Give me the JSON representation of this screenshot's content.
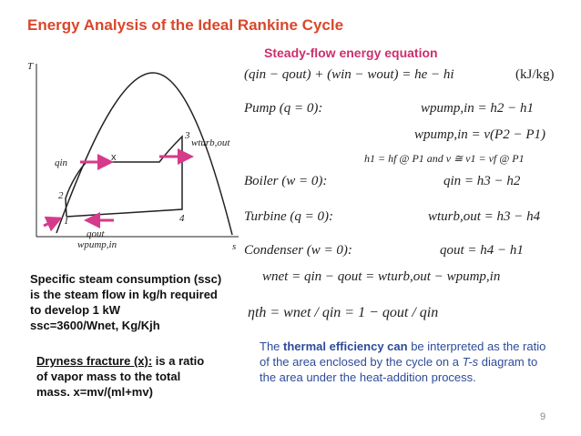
{
  "title": "Energy Analysis of the Ideal Rankine Cycle",
  "subtitle": "Steady-flow energy equation",
  "diagram": {
    "t_axis": "T",
    "s_axis": "s",
    "q_in": "qin",
    "q_out": "qout",
    "w_turb": "wturb,out",
    "w_pump": "wpump,in",
    "point_1": "1",
    "point_2": "2",
    "point_3": "3",
    "point_4": "4",
    "x_mark": "x"
  },
  "equations": {
    "energy": "(qin − qout) + (win − wout) = he − hi",
    "units": "(kJ/kg)",
    "pump_label": "Pump (q = 0):",
    "pump_eq1": "wpump,in = h2 − h1",
    "pump_eq2": "wpump,in = v(P2 − P1)",
    "pump_note": "h1 = hf @ P1     and     v ≅ v1 = vf @ P1",
    "boiler_label": "Boiler (w = 0):",
    "boiler_eq": "qin = h3 − h2",
    "turbine_label": "Turbine (q = 0):",
    "turbine_eq": "wturb,out = h3 − h4",
    "condenser_label": "Condenser (w = 0):",
    "condenser_eq": "qout = h4 − h1",
    "net_work": "wnet = qin − qout = wturb,out − wpump,in",
    "efficiency": "ηth = wnet / qin = 1 − qout / qin"
  },
  "ssc": [
    "Specific steam consumption (ssc)",
    "is the steam flow in kg/h required",
    "to develop 1 kW",
    "ssc=3600/Wnet, Kg/Kjh"
  ],
  "dryness": {
    "term": "Dryness fracture (x):",
    "lines": [
      " is a ratio",
      "of vapor mass to the total",
      "mass. x=mv/(ml+mv)"
    ]
  },
  "efficiency_note": [
    "The ",
    "thermal efficiency can",
    " be interpreted as the ratio",
    "of the area enclosed by the cycle on a ",
    "T-s",
    " diagram to",
    "the area under the heat-addition process."
  ],
  "page_number": "9"
}
